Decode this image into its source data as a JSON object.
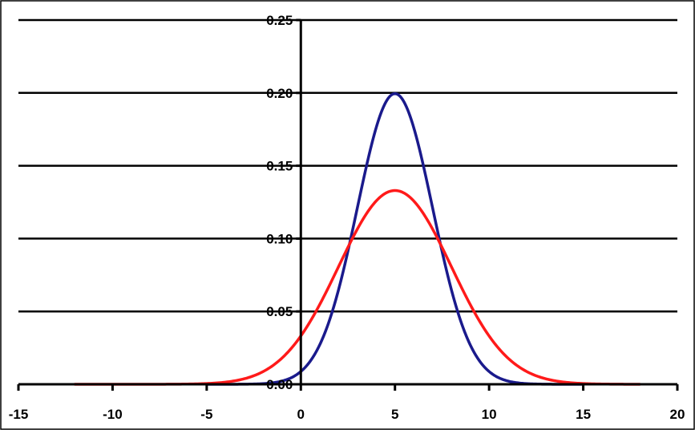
{
  "chart_data": {
    "type": "line",
    "title": "",
    "xlabel": "",
    "ylabel": "",
    "xlim": [
      -15,
      20
    ],
    "ylim": [
      0,
      0.25
    ],
    "x_ticks": [
      "-15",
      "-10",
      "-5",
      "0",
      "5",
      "10",
      "15",
      "20"
    ],
    "y_ticks": [
      "0.00",
      "0.05",
      "0.10",
      "0.15",
      "0.20",
      "0.25"
    ],
    "grid": true,
    "legend": false,
    "series": [
      {
        "color": "#1a1a8c",
        "distribution": "normal",
        "mean": 5,
        "sd": 2,
        "x_range": [
          -5,
          15
        ],
        "peak": 0.2
      },
      {
        "color": "#ff1a1a",
        "distribution": "normal",
        "mean": 5,
        "sd": 3,
        "x_range": [
          -12,
          18
        ],
        "peak": 0.133
      }
    ]
  }
}
